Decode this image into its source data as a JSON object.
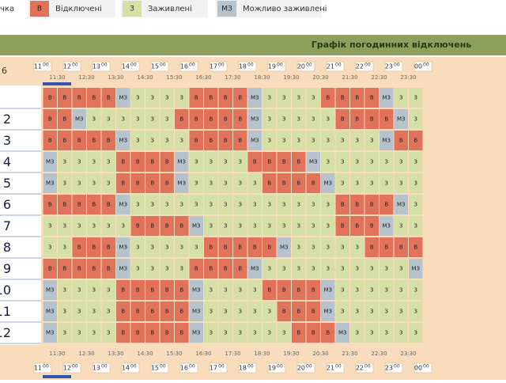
{
  "legend": {
    "lead": "чка",
    "items": [
      {
        "code": "В",
        "text": "Відключені",
        "color": "#e0735a"
      },
      {
        "code": "З",
        "text": "Заживлені",
        "color": "#d6e0a6"
      },
      {
        "code": "МЗ",
        "text": "Можливо заживлені",
        "color": "#b6c2cc"
      }
    ]
  },
  "header": {
    "title": "Графік погодинних відключень",
    "corner": "6"
  },
  "hours": [
    {
      "h": "11",
      "m": "00"
    },
    {
      "h": "12",
      "m": "00"
    },
    {
      "h": "13",
      "m": "00"
    },
    {
      "h": "14",
      "m": "00"
    },
    {
      "h": "15",
      "m": "00"
    },
    {
      "h": "16",
      "m": "00"
    },
    {
      "h": "17",
      "m": "00"
    },
    {
      "h": "18",
      "m": "00"
    },
    {
      "h": "19",
      "m": "00"
    },
    {
      "h": "20",
      "m": "00"
    },
    {
      "h": "21",
      "m": "00"
    },
    {
      "h": "22",
      "m": "00"
    },
    {
      "h": "23",
      "m": "00"
    },
    {
      "h": "00",
      "m": "00"
    }
  ],
  "half_hours": [
    "11:30",
    "12:30",
    "13:30",
    "14:30",
    "15:30",
    "16:30",
    "17:30",
    "18:30",
    "19:30",
    "20:30",
    "21:30",
    "22:30",
    "23:30"
  ],
  "rows": [
    {
      "cells": [
        "В",
        "В",
        "В",
        "В",
        "В",
        "МЗ",
        "З",
        "З",
        "З",
        "З",
        "В",
        "В",
        "В",
        "В",
        "МЗ",
        "З",
        "З",
        "З",
        "З",
        "В",
        "В",
        "В",
        "В",
        "МЗ",
        "З",
        "З"
      ]
    },
    {
      "label": "2",
      "cells": [
        "В",
        "В",
        "МЗ",
        "З",
        "З",
        "З",
        "З",
        "З",
        "З",
        "В",
        "В",
        "В",
        "В",
        "В",
        "МЗ",
        "З",
        "З",
        "З",
        "З",
        "З",
        "В",
        "В",
        "В",
        "В",
        "МЗ",
        "З"
      ]
    },
    {
      "label": "3",
      "cells": [
        "В",
        "В",
        "В",
        "В",
        "В",
        "МЗ",
        "З",
        "З",
        "З",
        "З",
        "В",
        "В",
        "В",
        "В",
        "МЗ",
        "З",
        "З",
        "З",
        "З",
        "З",
        "З",
        "З",
        "З",
        "МЗ",
        "В",
        "В"
      ]
    },
    {
      "label": "4",
      "cells": [
        "МЗ",
        "З",
        "З",
        "З",
        "З",
        "В",
        "В",
        "В",
        "В",
        "МЗ",
        "З",
        "З",
        "З",
        "З",
        "В",
        "В",
        "В",
        "В",
        "МЗ",
        "З",
        "З",
        "З",
        "З",
        "З",
        "З",
        "З"
      ]
    },
    {
      "label": "5",
      "cells": [
        "МЗ",
        "З",
        "З",
        "З",
        "З",
        "В",
        "В",
        "В",
        "В",
        "МЗ",
        "З",
        "З",
        "З",
        "З",
        "З",
        "В",
        "В",
        "В",
        "В",
        "МЗ",
        "З",
        "З",
        "З",
        "З",
        "З",
        "З"
      ]
    },
    {
      "label": "6",
      "cells": [
        "В",
        "В",
        "В",
        "В",
        "В",
        "МЗ",
        "З",
        "З",
        "З",
        "З",
        "З",
        "З",
        "З",
        "З",
        "З",
        "З",
        "З",
        "З",
        "З",
        "З",
        "В",
        "В",
        "В",
        "В",
        "МЗ",
        "З"
      ]
    },
    {
      "label": "7",
      "cells": [
        "З",
        "З",
        "З",
        "З",
        "З",
        "З",
        "В",
        "В",
        "В",
        "В",
        "МЗ",
        "З",
        "З",
        "З",
        "З",
        "З",
        "З",
        "З",
        "З",
        "З",
        "В",
        "В",
        "В",
        "МЗ",
        "З",
        "З"
      ]
    },
    {
      "label": "8",
      "cells": [
        "З",
        "З",
        "В",
        "В",
        "В",
        "МЗ",
        "З",
        "З",
        "З",
        "З",
        "З",
        "В",
        "В",
        "В",
        "В",
        "В",
        "МЗ",
        "З",
        "З",
        "З",
        "З",
        "З",
        "В",
        "В",
        "В",
        "В"
      ]
    },
    {
      "label": "9",
      "cells": [
        "В",
        "В",
        "В",
        "В",
        "В",
        "МЗ",
        "З",
        "З",
        "З",
        "З",
        "В",
        "В",
        "В",
        "В",
        "МЗ",
        "З",
        "З",
        "З",
        "З",
        "З",
        "З",
        "З",
        "З",
        "З",
        "З",
        "МЗ"
      ]
    },
    {
      "label": "10",
      "cells": [
        "МЗ",
        "З",
        "З",
        "З",
        "З",
        "В",
        "В",
        "В",
        "В",
        "В",
        "МЗ",
        "З",
        "З",
        "З",
        "З",
        "В",
        "В",
        "В",
        "В",
        "МЗ",
        "З",
        "З",
        "З",
        "З",
        "З",
        "З"
      ]
    },
    {
      "label": "11",
      "cells": [
        "МЗ",
        "З",
        "З",
        "З",
        "З",
        "В",
        "В",
        "В",
        "В",
        "В",
        "МЗ",
        "З",
        "З",
        "З",
        "З",
        "З",
        "В",
        "В",
        "В",
        "МЗ",
        "З",
        "З",
        "З",
        "З",
        "З",
        "З"
      ]
    },
    {
      "label": "12",
      "cells": [
        "МЗ",
        "З",
        "З",
        "З",
        "З",
        "В",
        "В",
        "В",
        "В",
        "В",
        "МЗ",
        "З",
        "З",
        "З",
        "З",
        "З",
        "З",
        "В",
        "В",
        "В",
        "МЗ",
        "З",
        "З",
        "З",
        "З",
        "З"
      ]
    }
  ]
}
